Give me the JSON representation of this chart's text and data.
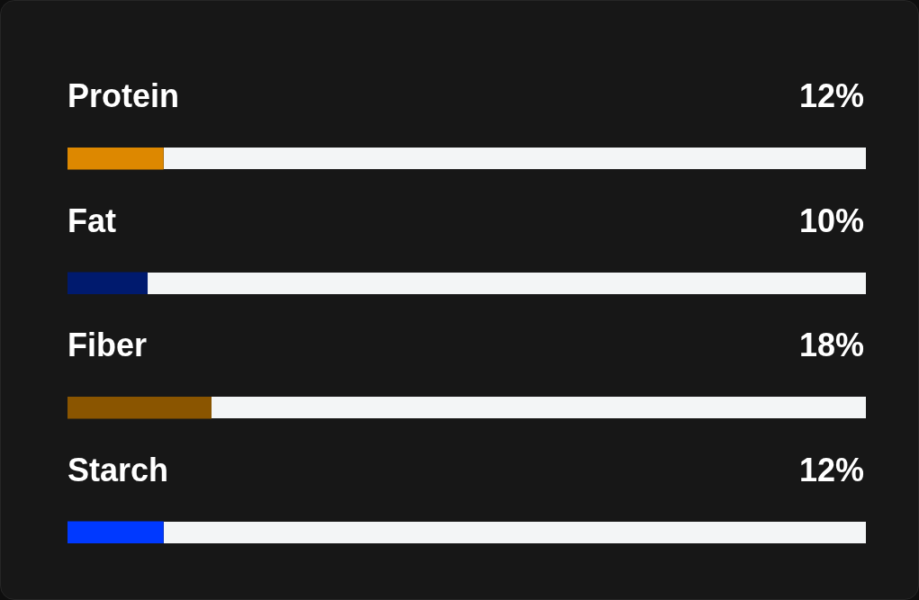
{
  "chart_data": {
    "type": "bar",
    "orientation": "horizontal",
    "categories": [
      "Protein",
      "Fat",
      "Fiber",
      "Starch"
    ],
    "values": [
      12,
      10,
      18,
      12
    ],
    "colors": [
      "#dd8800",
      "#001a6e",
      "#8a5500",
      "#0039ff"
    ],
    "value_labels": [
      "12%",
      "10%",
      "18%",
      "12%"
    ],
    "xlim": [
      0,
      100
    ],
    "tick_labels": "y",
    "legend": false
  }
}
